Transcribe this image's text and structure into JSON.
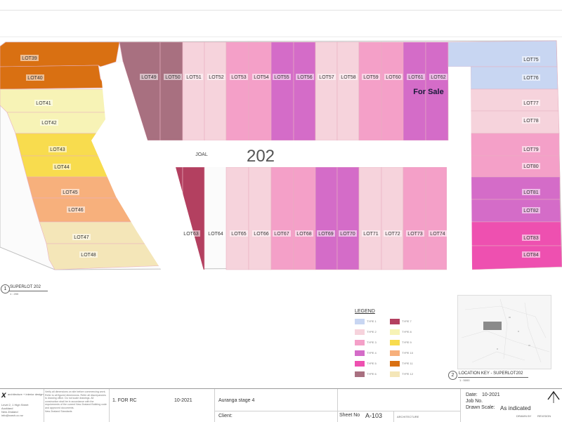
{
  "plan": {
    "big_number": "202",
    "road_label": "JOAL",
    "for_sale": "For Sale",
    "lots": [
      {
        "id": "39",
        "label": "LOT39",
        "fill": "#d97012"
      },
      {
        "id": "40",
        "label": "LOT40",
        "fill": "#d97012"
      },
      {
        "id": "41",
        "label": "LOT41",
        "fill": "#f7f3b6"
      },
      {
        "id": "42",
        "label": "LOT42",
        "fill": "#f7f3b6"
      },
      {
        "id": "43",
        "label": "LOT43",
        "fill": "#f8dc4e"
      },
      {
        "id": "44",
        "label": "LOT44",
        "fill": "#f8dc4e"
      },
      {
        "id": "45",
        "label": "LOT45",
        "fill": "#f7b07c"
      },
      {
        "id": "46",
        "label": "LOT46",
        "fill": "#f7b07c"
      },
      {
        "id": "47",
        "label": "LOT47",
        "fill": "#f4e6b8"
      },
      {
        "id": "48",
        "label": "LOT48",
        "fill": "#f4e6b8"
      },
      {
        "id": "49",
        "label": "LOT49",
        "fill": "#a87080"
      },
      {
        "id": "50",
        "label": "LOT50",
        "fill": "#a87080"
      },
      {
        "id": "51",
        "label": "LOT51",
        "fill": "#f6d3dc"
      },
      {
        "id": "52",
        "label": "LOT52",
        "fill": "#f6d3dc"
      },
      {
        "id": "53",
        "label": "LOT53",
        "fill": "#f4a0c8"
      },
      {
        "id": "54",
        "label": "LOT54",
        "fill": "#f4a0c8"
      },
      {
        "id": "55",
        "label": "LOT55",
        "fill": "#d46cc8"
      },
      {
        "id": "56",
        "label": "LOT56",
        "fill": "#d46cc8"
      },
      {
        "id": "57",
        "label": "LOT57",
        "fill": "#f6d3dc"
      },
      {
        "id": "58",
        "label": "LOT58",
        "fill": "#f6d3dc"
      },
      {
        "id": "59",
        "label": "LOT59",
        "fill": "#f4a0c8"
      },
      {
        "id": "60",
        "label": "LOT60",
        "fill": "#f4a0c8"
      },
      {
        "id": "61",
        "label": "LOT61",
        "fill": "#d46cc8"
      },
      {
        "id": "62",
        "label": "LOT62",
        "fill": "#d46cc8"
      },
      {
        "id": "63",
        "label": "LOT63",
        "fill": "#b34060"
      },
      {
        "id": "64",
        "label": "LOT64",
        "fill": "#b34060"
      },
      {
        "id": "65",
        "label": "LOT65",
        "fill": "#f6d3dc"
      },
      {
        "id": "66",
        "label": "LOT66",
        "fill": "#f6d3dc"
      },
      {
        "id": "67",
        "label": "LOT67",
        "fill": "#f4a0c8"
      },
      {
        "id": "68",
        "label": "LOT68",
        "fill": "#f4a0c8"
      },
      {
        "id": "69",
        "label": "LOT69",
        "fill": "#d46cc8"
      },
      {
        "id": "70",
        "label": "LOT70",
        "fill": "#d46cc8"
      },
      {
        "id": "71",
        "label": "LOT71",
        "fill": "#f6d3dc"
      },
      {
        "id": "72",
        "label": "LOT72",
        "fill": "#f6d3dc"
      },
      {
        "id": "73",
        "label": "LOT73",
        "fill": "#f4a0c8"
      },
      {
        "id": "74",
        "label": "LOT74",
        "fill": "#f4a0c8"
      },
      {
        "id": "75",
        "label": "LOT75",
        "fill": "#c8d6f2"
      },
      {
        "id": "76",
        "label": "LOT76",
        "fill": "#c8d6f2"
      },
      {
        "id": "77",
        "label": "LOT77",
        "fill": "#f6d3dc"
      },
      {
        "id": "78",
        "label": "LOT78",
        "fill": "#f6d3dc"
      },
      {
        "id": "79",
        "label": "LOT79",
        "fill": "#f4a0c8"
      },
      {
        "id": "80",
        "label": "LOT80",
        "fill": "#f4a0c8"
      },
      {
        "id": "81",
        "label": "LOT81",
        "fill": "#d46cc8"
      },
      {
        "id": "82",
        "label": "LOT82",
        "fill": "#d46cc8"
      },
      {
        "id": "83",
        "label": "LOT83",
        "fill": "#ee50b0"
      },
      {
        "id": "84",
        "label": "LOT84",
        "fill": "#ee50b0"
      }
    ]
  },
  "view_labels": {
    "view1_number": "1",
    "view1_title": "SUPERLOT 202",
    "view1_scale": "1 : 200",
    "view2_number": "2",
    "view2_title": "LOCATION KEY - SUPERLOT202",
    "view2_scale": "1 : 5000"
  },
  "legend": {
    "title": "LEGEND",
    "items": [
      {
        "color": "#c8d6f2",
        "text": "TYPE 1"
      },
      {
        "color": "#b34060",
        "text": "TYPE 7"
      },
      {
        "color": "#f6d3dc",
        "text": "TYPE 2"
      },
      {
        "color": "#f7f3b6",
        "text": "TYPE 8"
      },
      {
        "color": "#f4a0c8",
        "text": "TYPE 3"
      },
      {
        "color": "#f8dc4e",
        "text": "TYPE 9"
      },
      {
        "color": "#d46cc8",
        "text": "TYPE 4"
      },
      {
        "color": "#f7b07c",
        "text": "TYPE 10"
      },
      {
        "color": "#ee50b0",
        "text": "TYPE 5"
      },
      {
        "color": "#d97012",
        "text": "TYPE 11"
      },
      {
        "color": "#a87080",
        "text": "TYPE 6"
      },
      {
        "color": "#f4e6b8",
        "text": "TYPE 12"
      }
    ]
  },
  "title_block": {
    "firm_logo": "x",
    "firm_name": "architecture + interior design",
    "firm_address_1": "Level 2, 1 High Street",
    "firm_address_2": "Auckland",
    "firm_address_3": "New Zealand",
    "firm_email": "info@xarch.co.nz",
    "notes": [
      "Verify all dimensions on site before commencing work.",
      "Refer to all figured dimensions. Refer all discrepancies",
      "to drawing office. Do not scale drawings. All",
      "construction shall be in accordance with the",
      "requirements of the current New Zealand Building code",
      "and approved documents.",
      "New Zealand Standards"
    ],
    "revision": "1. FOR RC",
    "revision_date": "10-2021",
    "project": "Auranga stage 4",
    "client_label": "Client:",
    "sheet_no_label": "Sheet No",
    "sheet_no": "A-103",
    "date_label": "Date:",
    "date": "10-2021",
    "job_no_label": "Job No.",
    "drawn_scale_label": "Drawn Scale:",
    "drawn_scale": "As indicated",
    "discipline": "ARCHITECTURE",
    "small_code_1": "DRAWN BY",
    "small_code_2": "REVISION"
  }
}
